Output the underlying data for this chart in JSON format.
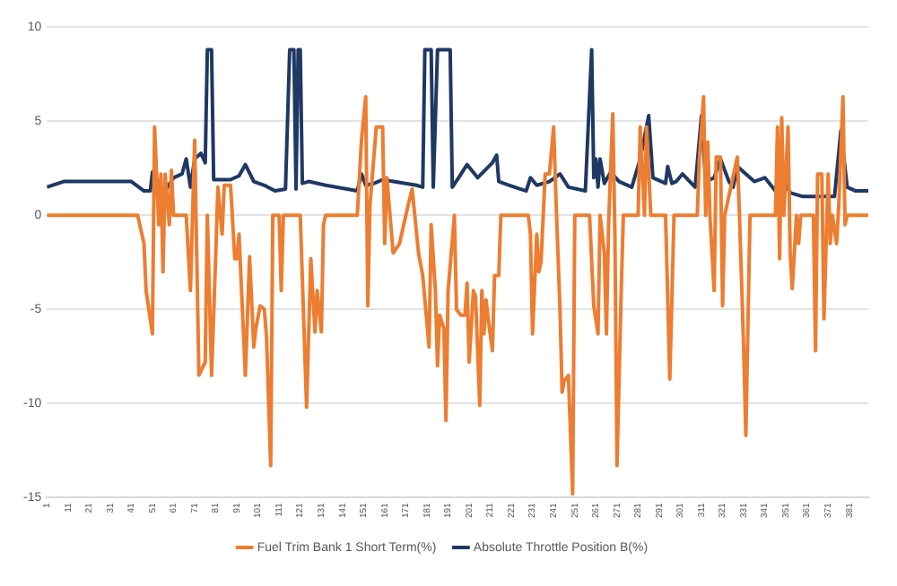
{
  "chart_data": {
    "type": "line",
    "xlim": [
      1,
      390
    ],
    "xticks": [
      1,
      11,
      21,
      31,
      41,
      51,
      61,
      71,
      81,
      91,
      101,
      111,
      121,
      131,
      141,
      151,
      161,
      171,
      181,
      191,
      201,
      211,
      221,
      231,
      241,
      251,
      261,
      271,
      281,
      291,
      301,
      311,
      321,
      331,
      341,
      351,
      361,
      371,
      381
    ],
    "ylim": [
      -15,
      10
    ],
    "yticks": [
      -15,
      -10,
      -5,
      0,
      5,
      10
    ],
    "grid": "y",
    "legend": "bottom",
    "series": [
      {
        "name": "Fuel Trim Bank 1 Short Term(%)",
        "color": "#ed7d31",
        "x": [
          1,
          44,
          47,
          48,
          51,
          52,
          54,
          55,
          56,
          57,
          59,
          60,
          61,
          67,
          69,
          71,
          73,
          76,
          77,
          79,
          81,
          82,
          84,
          85,
          88,
          90,
          91,
          92,
          95,
          97,
          99,
          100,
          102,
          104,
          105,
          107,
          108,
          111,
          112,
          113,
          121,
          124,
          126,
          128,
          129,
          131,
          132,
          133,
          148,
          150,
          152,
          153,
          154,
          157,
          160,
          161,
          162,
          165,
          168,
          172,
          174,
          177,
          179,
          182,
          183,
          185,
          186,
          187,
          189,
          190,
          191,
          194,
          195,
          197,
          199,
          200,
          201,
          203,
          204,
          206,
          207,
          208,
          209,
          210,
          212,
          213,
          215,
          216,
          229,
          230,
          231,
          233,
          234,
          235,
          237,
          239,
          241,
          242,
          244,
          245,
          246,
          248,
          250,
          251,
          258,
          260,
          262,
          263,
          265,
          266,
          267,
          269,
          270,
          271,
          273,
          274,
          281,
          282,
          284,
          285,
          287,
          294,
          296,
          298,
          309,
          310,
          312,
          313,
          314,
          315,
          317,
          318,
          320,
          321,
          322,
          328,
          329,
          331,
          332,
          334,
          346,
          347,
          348,
          349,
          350,
          352,
          353,
          354,
          356,
          357,
          358,
          364,
          365,
          366,
          368,
          369,
          371,
          372,
          373,
          375,
          376,
          378,
          379,
          380,
          390
        ],
        "values": [
          0,
          0,
          -1.5,
          -4,
          -6.3,
          4.7,
          -0.5,
          2.2,
          -3,
          2.2,
          -0.5,
          2.4,
          0,
          0,
          -4,
          4,
          -8.5,
          -7.8,
          0,
          -8.5,
          -2,
          1.5,
          -1,
          1.6,
          1.6,
          -2.3,
          -2.3,
          -1,
          -8.5,
          -2.2,
          -7,
          -6,
          -4.8,
          -5,
          -6.4,
          -13.3,
          0,
          0,
          -4,
          0,
          0,
          -10.2,
          -2.3,
          -6.2,
          -4,
          -6.2,
          -0.5,
          0,
          0,
          4,
          6.3,
          -4.8,
          0.5,
          4.7,
          4.7,
          -1.5,
          2,
          -2,
          -1.5,
          0.5,
          1.4,
          -2,
          -3.2,
          -7,
          -0.5,
          -4,
          -8,
          -5.3,
          -6,
          -10.9,
          -4,
          0,
          -5,
          -5.3,
          -5.3,
          -3.6,
          -7.8,
          -4,
          -4.3,
          -10.1,
          -4,
          -6.3,
          -4.5,
          -5.5,
          -7.2,
          -3.2,
          -3.2,
          0,
          0,
          -1,
          -6.3,
          -1,
          -3,
          -2.5,
          2.2,
          2.2,
          4.7,
          1.2,
          -5,
          -9.4,
          -8.8,
          -8.5,
          -14.8,
          0,
          0,
          -4.8,
          -6.3,
          0,
          -2,
          -6.3,
          -0.5,
          5.4,
          -1,
          -13.3,
          -4,
          0,
          0,
          4.7,
          0,
          4.7,
          0,
          0,
          -8.7,
          0,
          0,
          3,
          6.3,
          0,
          3.9,
          0,
          -4,
          3.1,
          3.1,
          -4.8,
          0,
          3.1,
          0,
          -7.1,
          -11.7,
          0,
          0,
          4.7,
          -2.3,
          5.2,
          0,
          4.7,
          -2,
          -3.9,
          0,
          -1.5,
          0,
          0,
          -7.2,
          2.2,
          2.2,
          -5.5,
          2.2,
          -1.5,
          0,
          -1.5,
          0.5,
          6.3,
          -0.5,
          0,
          0
        ]
      },
      {
        "name": "Absolute Throttle Position B(%)",
        "color": "#1f3864",
        "x": [
          1,
          9,
          41,
          47,
          50,
          51,
          55,
          57,
          61,
          65,
          67,
          69,
          71,
          74,
          76,
          77,
          79,
          80,
          88,
          92,
          95,
          99,
          104,
          109,
          114,
          116,
          118,
          119,
          120,
          121,
          122,
          125,
          133,
          148,
          150,
          152,
          156,
          160,
          176,
          179,
          180,
          183,
          184,
          186,
          192,
          193,
          196,
          200,
          205,
          212,
          214,
          215,
          220,
          228,
          230,
          233,
          239,
          244,
          248,
          256,
          259,
          260,
          261,
          262,
          263,
          265,
          268,
          272,
          278,
          282,
          286,
          288,
          294,
          295,
          297,
          299,
          302,
          308,
          311,
          313,
          317,
          320,
          324,
          326,
          328,
          336,
          341,
          346,
          348,
          353,
          359,
          374,
          377,
          380,
          384,
          390
        ],
        "values": [
          1.5,
          1.8,
          1.8,
          1.3,
          1.3,
          2.3,
          1.5,
          1.3,
          2,
          2.2,
          3,
          1.5,
          3,
          3.3,
          2.8,
          8.8,
          8.8,
          1.9,
          1.9,
          2.1,
          2.7,
          1.8,
          1.6,
          1.3,
          1.4,
          8.8,
          8.8,
          1.4,
          8.8,
          8.8,
          1.7,
          1.8,
          1.6,
          1.3,
          2.2,
          1.6,
          1.7,
          1.9,
          1.6,
          1.5,
          8.8,
          8.8,
          1.5,
          8.8,
          8.8,
          1.5,
          2,
          2.7,
          2,
          2.8,
          3.2,
          1.8,
          1.6,
          1.3,
          2,
          1.6,
          1.8,
          2.2,
          1.5,
          1.3,
          8.8,
          2,
          3,
          1.5,
          3,
          1.7,
          2.3,
          1.8,
          1.5,
          3,
          5.3,
          2,
          1.7,
          2.6,
          1.7,
          1.8,
          2.2,
          1.5,
          5.3,
          1.8,
          2,
          3,
          1.8,
          1.5,
          2.6,
          1.8,
          2,
          1.3,
          2.3,
          1.2,
          1,
          1,
          4.5,
          1.5,
          1.3,
          1.3
        ]
      }
    ]
  }
}
